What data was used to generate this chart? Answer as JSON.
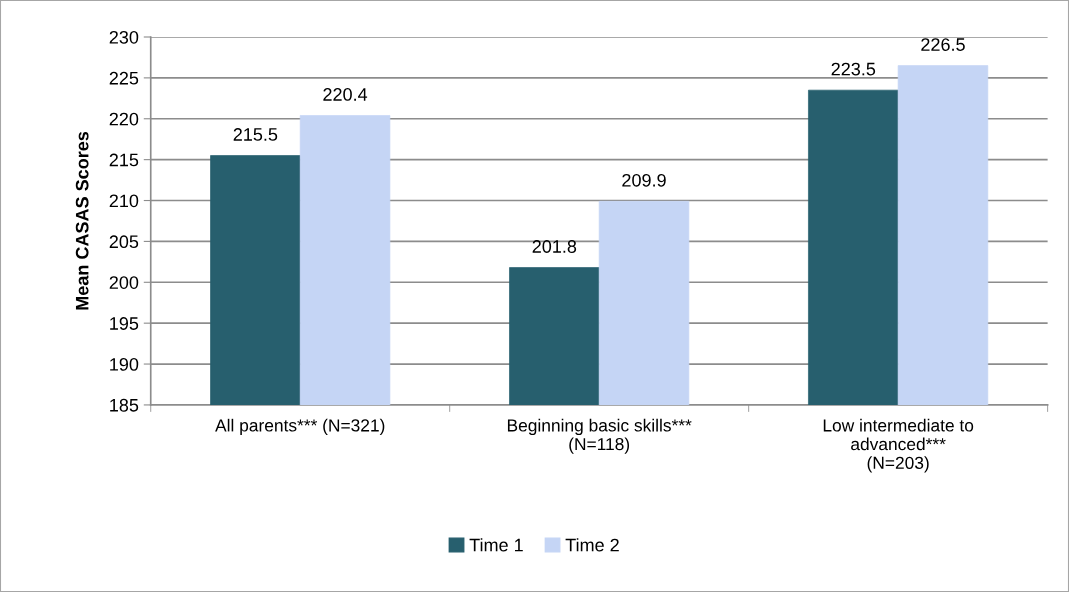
{
  "chart_data": {
    "type": "bar",
    "ylabel": "Mean CASAS Scores",
    "categories": [
      "All parents*** (N=321)",
      "Beginning basic skills***\n(N=118)",
      "Low intermediate to\nadvanced***\n(N=203)"
    ],
    "series": [
      {
        "name": "Time 1",
        "color": "#275f6e",
        "values": [
          215.5,
          201.8,
          223.5
        ]
      },
      {
        "name": "Time 2",
        "color": "#c5d5f5",
        "values": [
          220.4,
          209.9,
          226.5
        ]
      }
    ],
    "ylim": [
      185,
      230
    ],
    "yticks": [
      185,
      190,
      195,
      200,
      205,
      210,
      215,
      220,
      225,
      230
    ],
    "grid": "y",
    "legend": "bottom",
    "data_labels": true
  }
}
